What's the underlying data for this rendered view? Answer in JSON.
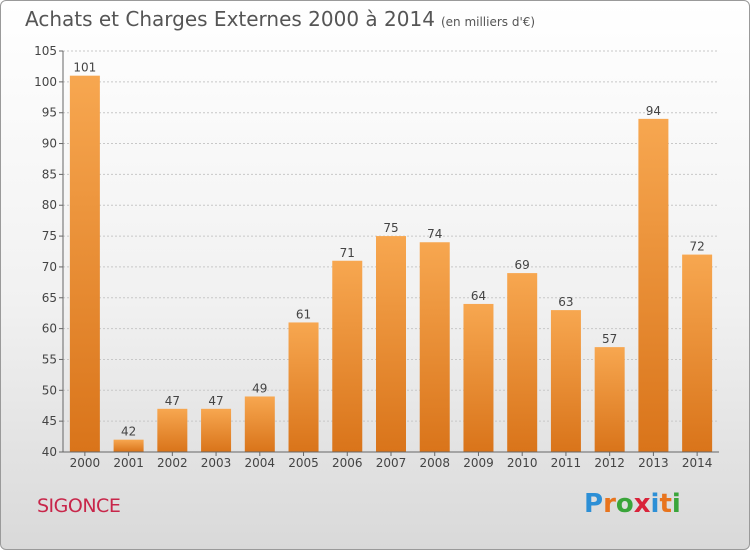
{
  "header": {
    "title": "Achats et Charges Externes 2000 à 2014",
    "subtitle": "(en milliers d'€)"
  },
  "footer": {
    "place": "SIGONCE",
    "logo_letters": [
      "P",
      "r",
      "o",
      "x",
      "i",
      "t",
      "i"
    ],
    "logo_colors": [
      "#2c8fd6",
      "#e8741d",
      "#3aa53a",
      "#d9233a",
      "#2c8fd6",
      "#e8741d",
      "#3aa53a"
    ]
  },
  "colors": {
    "bar_top": "#f7a750",
    "bar_bottom": "#d9741a",
    "axis": "#666666",
    "grid": "#c8c8c8",
    "text": "#444444"
  },
  "chart_data": {
    "type": "bar",
    "title": "Achats et Charges Externes 2000 à 2014",
    "subtitle": "(en milliers d'€)",
    "categories": [
      "2000",
      "2001",
      "2002",
      "2003",
      "2004",
      "2005",
      "2006",
      "2007",
      "2008",
      "2009",
      "2010",
      "2011",
      "2012",
      "2013",
      "2014"
    ],
    "values": [
      101,
      42,
      47,
      47,
      49,
      61,
      71,
      75,
      74,
      64,
      69,
      63,
      57,
      94,
      72
    ],
    "ylim": [
      40,
      105
    ],
    "yticks": [
      40,
      45,
      50,
      55,
      60,
      65,
      70,
      75,
      80,
      85,
      90,
      95,
      100,
      105
    ],
    "grid": true,
    "data_labels": true
  }
}
